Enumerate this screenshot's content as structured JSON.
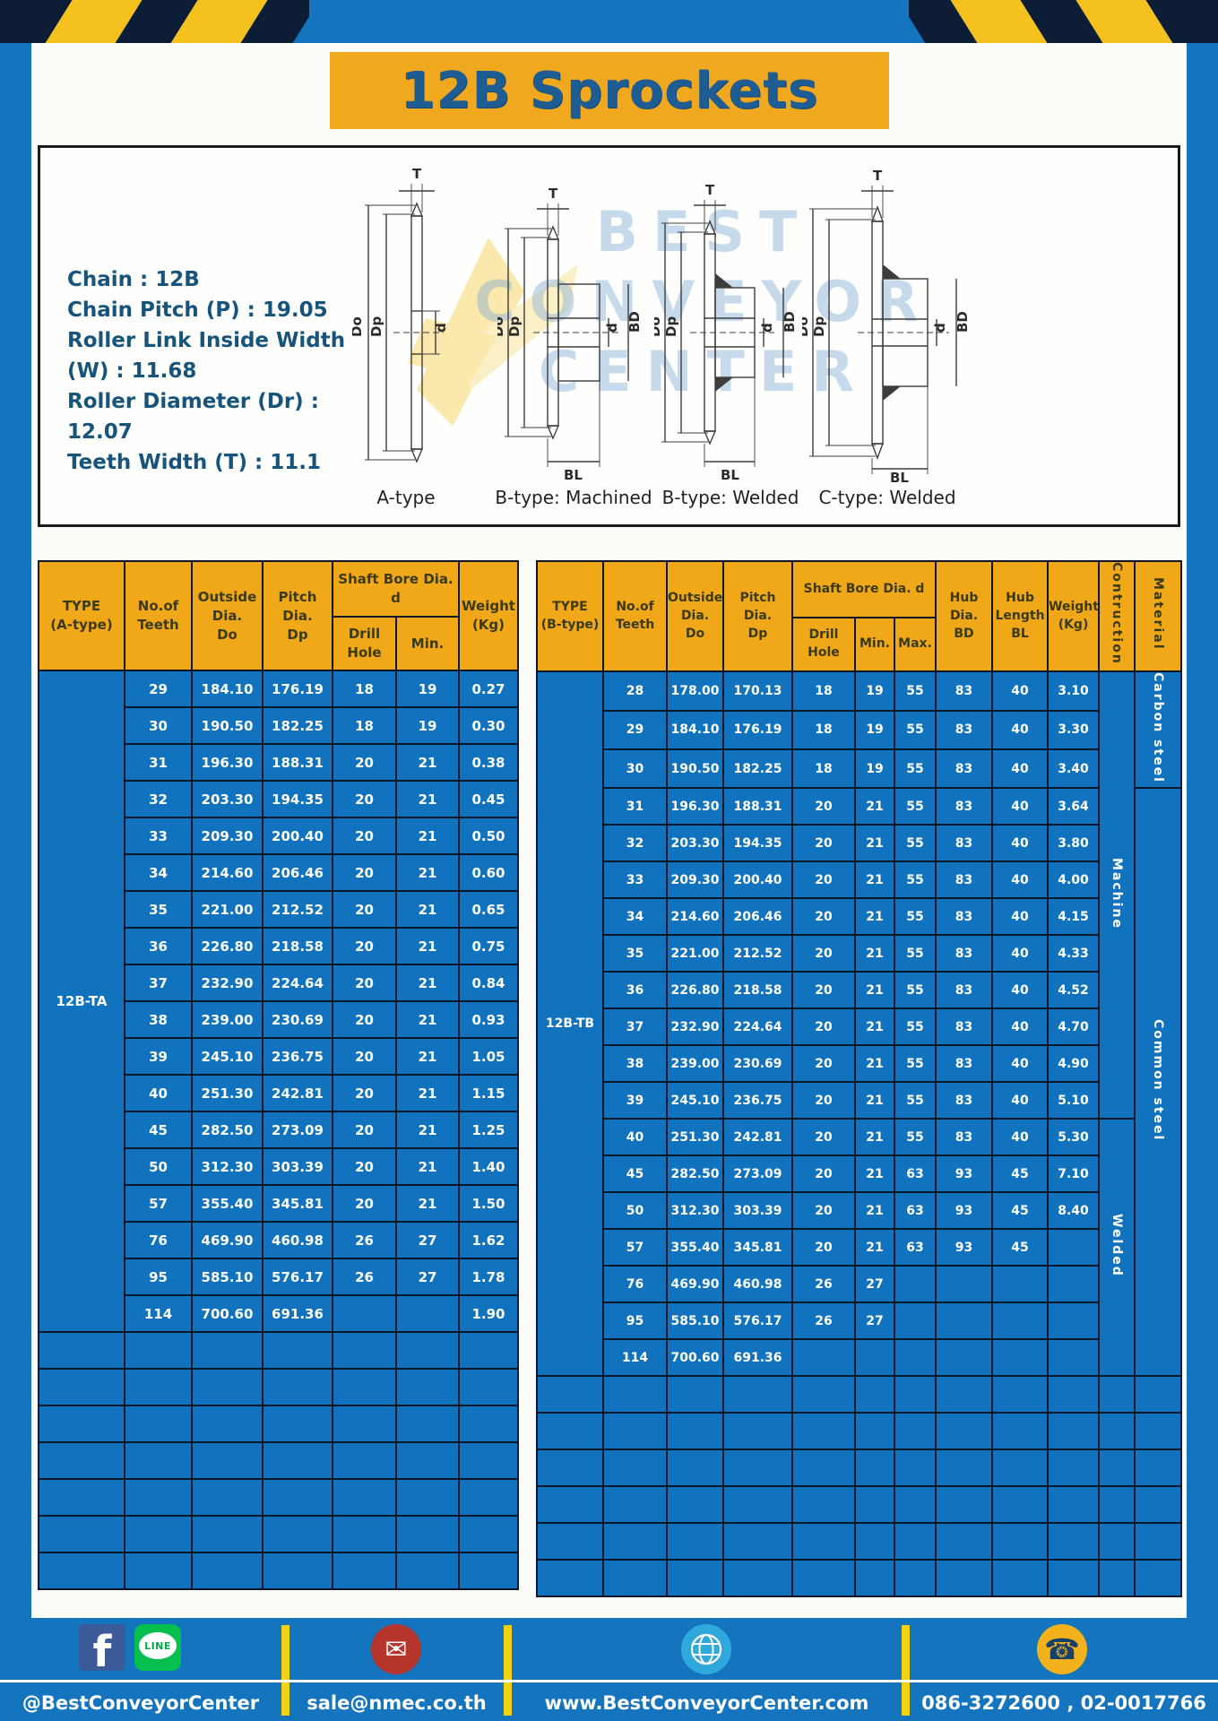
{
  "title": "12B Sprockets",
  "specs": [
    "Chain : 12B",
    "Chain Pitch (P) : 19.05",
    "Roller Link Inside Width (W) : 11.68",
    "Roller Diameter (Dr) : 12.07",
    "Teeth Width (T) : 11.1"
  ],
  "watermark": [
    "BEST",
    "CONVEYOR",
    "CENTER"
  ],
  "diagrams": {
    "captions": [
      "A-type",
      "B-type: Machined",
      "B-type: Welded",
      "C-type: Welded"
    ]
  },
  "dims": {
    "T": "T",
    "Do": "Do",
    "Dp": "Dp",
    "d": "d",
    "BD": "BD",
    "BL": "BL"
  },
  "left_table": {
    "type_label": "12B-TA",
    "header": {
      "type": "TYPE\n(A-type)",
      "teeth": "No.of\nTeeth",
      "outside": "Outside\nDia.\nDo",
      "pitch": "Pitch Dia.\nDp",
      "shaft_bore": "Shaft Bore Dia. d",
      "drill": "Drill Hole",
      "min": "Min.",
      "weight": "Weight\n(Kg)"
    },
    "rows": [
      [
        "29",
        "184.10",
        "176.19",
        "18",
        "19",
        "0.27"
      ],
      [
        "30",
        "190.50",
        "182.25",
        "18",
        "19",
        "0.30"
      ],
      [
        "31",
        "196.30",
        "188.31",
        "20",
        "21",
        "0.38"
      ],
      [
        "32",
        "203.30",
        "194.35",
        "20",
        "21",
        "0.45"
      ],
      [
        "33",
        "209.30",
        "200.40",
        "20",
        "21",
        "0.50"
      ],
      [
        "34",
        "214.60",
        "206.46",
        "20",
        "21",
        "0.60"
      ],
      [
        "35",
        "221.00",
        "212.52",
        "20",
        "21",
        "0.65"
      ],
      [
        "36",
        "226.80",
        "218.58",
        "20",
        "21",
        "0.75"
      ],
      [
        "37",
        "232.90",
        "224.64",
        "20",
        "21",
        "0.84"
      ],
      [
        "38",
        "239.00",
        "230.69",
        "20",
        "21",
        "0.93"
      ],
      [
        "39",
        "245.10",
        "236.75",
        "20",
        "21",
        "1.05"
      ],
      [
        "40",
        "251.30",
        "242.81",
        "20",
        "21",
        "1.15"
      ],
      [
        "45",
        "282.50",
        "273.09",
        "20",
        "21",
        "1.25"
      ],
      [
        "50",
        "312.30",
        "303.39",
        "20",
        "21",
        "1.40"
      ],
      [
        "57",
        "355.40",
        "345.81",
        "20",
        "21",
        "1.50"
      ],
      [
        "76",
        "469.90",
        "460.98",
        "26",
        "27",
        "1.62"
      ],
      [
        "95",
        "585.10",
        "576.17",
        "26",
        "27",
        "1.78"
      ],
      [
        "114",
        "700.60",
        "691.36",
        "",
        "",
        "1.90"
      ]
    ],
    "empty_row_count": 7
  },
  "right_table": {
    "type_label": "12B-TB",
    "header": {
      "type": "TYPE\n(B-type)",
      "teeth": "No.of\nTeeth",
      "outside": "Outside\nDia.\nDo",
      "pitch": "Pitch Dia.\nDp",
      "shaft_bore": "Shaft Bore Dia. d",
      "drill": "Drill Hole",
      "min": "Min.",
      "max": "Max.",
      "hub_dia": "Hub Dia.\nBD",
      "hub_len": "Hub\nLength\nBL",
      "weight": "Weight\n(Kg)",
      "construction": "Contruction",
      "material": "Material"
    },
    "rows": [
      [
        "28",
        "178.00",
        "170.13",
        "18",
        "19",
        "55",
        "83",
        "40",
        "3.10"
      ],
      [
        "29",
        "184.10",
        "176.19",
        "18",
        "19",
        "55",
        "83",
        "40",
        "3.30"
      ],
      [
        "30",
        "190.50",
        "182.25",
        "18",
        "19",
        "55",
        "83",
        "40",
        "3.40"
      ],
      [
        "31",
        "196.30",
        "188.31",
        "20",
        "21",
        "55",
        "83",
        "40",
        "3.64"
      ],
      [
        "32",
        "203.30",
        "194.35",
        "20",
        "21",
        "55",
        "83",
        "40",
        "3.80"
      ],
      [
        "33",
        "209.30",
        "200.40",
        "20",
        "21",
        "55",
        "83",
        "40",
        "4.00"
      ],
      [
        "34",
        "214.60",
        "206.46",
        "20",
        "21",
        "55",
        "83",
        "40",
        "4.15"
      ],
      [
        "35",
        "221.00",
        "212.52",
        "20",
        "21",
        "55",
        "83",
        "40",
        "4.33"
      ],
      [
        "36",
        "226.80",
        "218.58",
        "20",
        "21",
        "55",
        "83",
        "40",
        "4.52"
      ],
      [
        "37",
        "232.90",
        "224.64",
        "20",
        "21",
        "55",
        "83",
        "40",
        "4.70"
      ],
      [
        "38",
        "239.00",
        "230.69",
        "20",
        "21",
        "55",
        "83",
        "40",
        "4.90"
      ],
      [
        "39",
        "245.10",
        "236.75",
        "20",
        "21",
        "55",
        "83",
        "40",
        "5.10"
      ],
      [
        "40",
        "251.30",
        "242.81",
        "20",
        "21",
        "55",
        "83",
        "40",
        "5.30"
      ],
      [
        "45",
        "282.50",
        "273.09",
        "20",
        "21",
        "63",
        "93",
        "45",
        "7.10"
      ],
      [
        "50",
        "312.30",
        "303.39",
        "20",
        "21",
        "63",
        "93",
        "45",
        "8.40"
      ],
      [
        "57",
        "355.40",
        "345.81",
        "20",
        "21",
        "63",
        "93",
        "45",
        ""
      ],
      [
        "76",
        "469.90",
        "460.98",
        "26",
        "27",
        "",
        "",
        "",
        ""
      ],
      [
        "95",
        "585.10",
        "576.17",
        "26",
        "27",
        "",
        "",
        "",
        ""
      ],
      [
        "114",
        "700.60",
        "691.36",
        "",
        "",
        "",
        "",
        "",
        ""
      ]
    ],
    "construction_groups": [
      {
        "label": "Machine",
        "span": 12
      },
      {
        "label": "Welded",
        "span": 7
      }
    ],
    "material_groups": [
      {
        "label": "Carbon steel",
        "span": 3
      },
      {
        "label": "Common steel",
        "span": 16
      }
    ],
    "empty_row_count": 6
  },
  "footer": {
    "facebook_letter": "f",
    "line_label": "LINE",
    "mail_glyph": "✉",
    "phone_glyph": "☎",
    "texts": [
      "@BestConveyorCenter",
      "sale@nmec.co.th",
      "www.BestConveyorCenter.com",
      "086-3272600 , 02-0017766"
    ]
  },
  "colors": {
    "frame_blue": "#1474BE",
    "banner_yellow": "#F0A81F",
    "header_yellow": "#F0A818",
    "table_blue": "#1173BE",
    "hazard_yellow": "#F5C11E",
    "hazard_navy": "#0D1D36"
  }
}
